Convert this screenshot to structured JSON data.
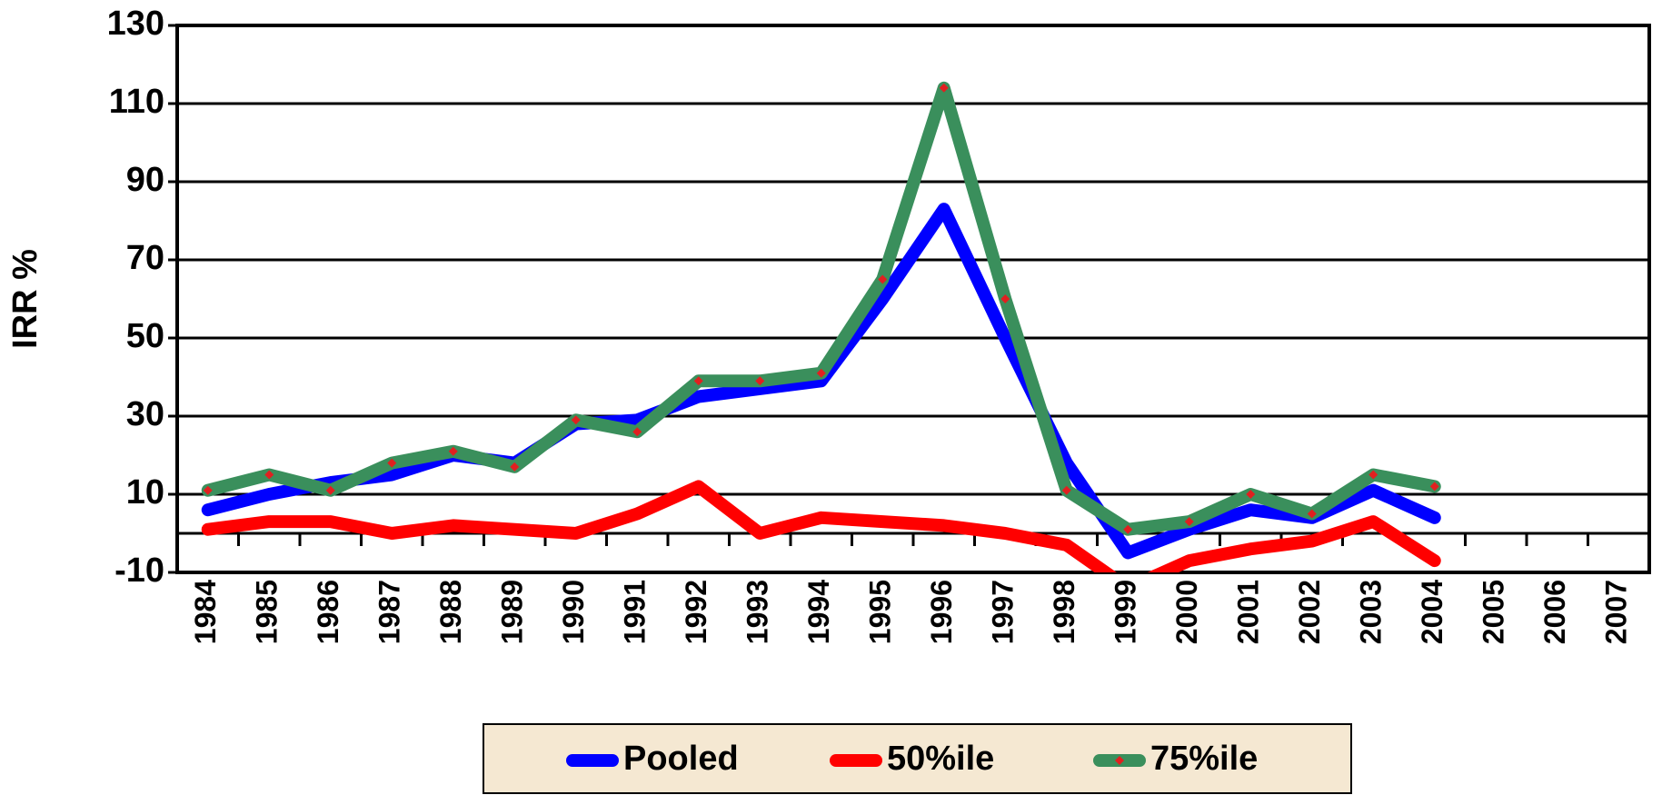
{
  "chart_data": {
    "type": "line",
    "y_label": "IRR %",
    "categories": [
      "1984",
      "1985",
      "1986",
      "1987",
      "1988",
      "1989",
      "1990",
      "1991",
      "1992",
      "1993",
      "1994",
      "1995",
      "1996",
      "1997",
      "1998",
      "1999",
      "2000",
      "2001",
      "2002",
      "2003",
      "2004",
      "2005",
      "2006",
      "2007"
    ],
    "series": [
      {
        "name": "Pooled",
        "color": "#0000ff",
        "values": [
          6,
          10,
          13,
          15,
          20,
          18,
          28,
          29,
          35,
          37,
          39,
          60,
          83,
          50,
          18,
          -5,
          1,
          6,
          4,
          11,
          4,
          null,
          null,
          null
        ]
      },
      {
        "name": "50%ile",
        "color": "#ff0000",
        "values": [
          1,
          3,
          3,
          0,
          2,
          1,
          0,
          5,
          12,
          0,
          4,
          3,
          2,
          0,
          -3,
          -14,
          -7,
          -4,
          -2,
          3,
          -7,
          null,
          null,
          null
        ]
      },
      {
        "name": "75%ile",
        "color": "#3a8f5c",
        "marker_color": "#e02020",
        "values": [
          11,
          15,
          11,
          18,
          21,
          17,
          29,
          26,
          39,
          39,
          41,
          65,
          114,
          60,
          11,
          1,
          3,
          10,
          5,
          15,
          12,
          null,
          null,
          null
        ]
      }
    ],
    "ylim": [
      -10,
      130
    ],
    "yticks": [
      -10,
      10,
      30,
      50,
      70,
      90,
      110,
      130
    ],
    "grid": true,
    "legend": "bottom"
  }
}
